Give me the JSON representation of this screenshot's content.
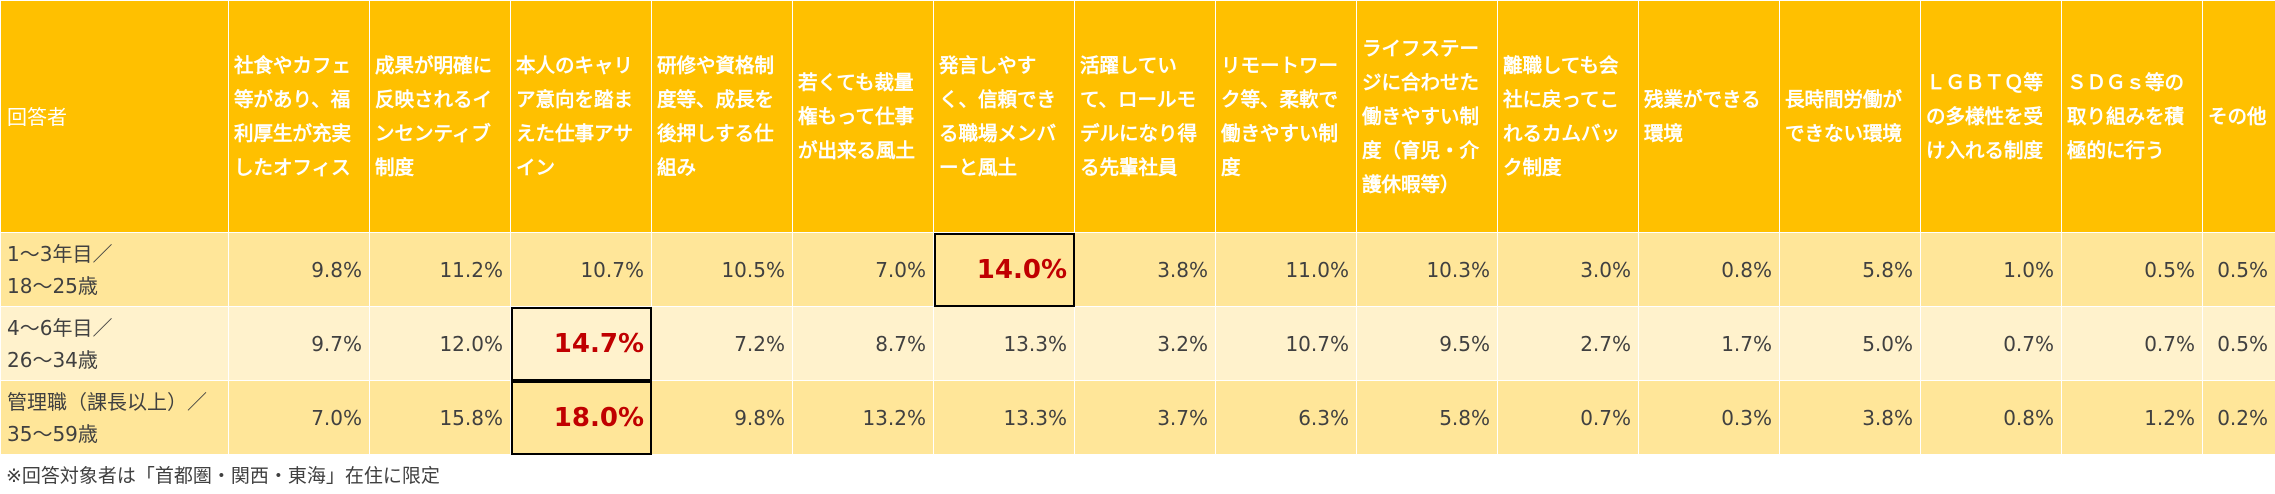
{
  "chart_data": {
    "type": "table",
    "row_header": "回答者",
    "columns": [
      "社食やカフェ等があり、福利厚生が充実したオフィス",
      "成果が明確に反映されるインセンティブ制度",
      "本人のキャリア意向を踏まえた仕事アサイン",
      "研修や資格制度等、成長を後押しする仕組み",
      "若くても裁量権もって仕事が出来る風土",
      "発言しやすく、信頼できる職場メンバーと風土",
      "活躍していて、ロールモデルになり得る先輩社員",
      "リモートワーク等、柔軟で働きやすい制度",
      "ライフステージに合わせた働きやすい制度（育児・介護休暇等）",
      "離職しても会社に戻ってこれるカムバック制度",
      "残業ができる環境",
      "長時間労働ができない環境",
      "ＬＧＢＴＱ等の多様性を受け入れる制度",
      "ＳＤＧｓ等の取り組みを積極的に行う",
      "その他"
    ],
    "rows": [
      {
        "label_line1": "1〜3年目／",
        "label_line2": "18〜25歳",
        "values": [
          9.8,
          11.2,
          10.7,
          10.5,
          7.0,
          14.0,
          3.8,
          11.0,
          10.3,
          3.0,
          0.8,
          5.8,
          1.0,
          0.5,
          0.5
        ],
        "display": [
          "9.8%",
          "11.2%",
          "10.7%",
          "10.5%",
          "7.0%",
          "14.0%",
          "3.8%",
          "11.0%",
          "10.3%",
          "3.0%",
          "0.8%",
          "5.8%",
          "1.0%",
          "0.5%",
          "0.5%"
        ],
        "highlight_index": 5
      },
      {
        "label_line1": "4〜6年目／",
        "label_line2": "26〜34歳",
        "values": [
          9.7,
          12.0,
          14.7,
          7.2,
          8.7,
          13.3,
          3.2,
          10.7,
          9.5,
          2.7,
          1.7,
          5.0,
          0.7,
          0.7,
          0.5
        ],
        "display": [
          "9.7%",
          "12.0%",
          "14.7%",
          "7.2%",
          "8.7%",
          "13.3%",
          "3.2%",
          "10.7%",
          "9.5%",
          "2.7%",
          "1.7%",
          "5.0%",
          "0.7%",
          "0.7%",
          "0.5%"
        ],
        "highlight_index": 2
      },
      {
        "label_line1": "管理職（課長以上）／",
        "label_line2": "35〜59歳",
        "values": [
          7.0,
          15.8,
          18.0,
          9.8,
          13.2,
          13.3,
          3.7,
          6.3,
          5.8,
          0.7,
          0.3,
          3.8,
          0.8,
          1.2,
          0.2
        ],
        "display": [
          "7.0%",
          "15.8%",
          "18.0%",
          "9.8%",
          "13.2%",
          "13.3%",
          "3.7%",
          "6.3%",
          "5.8%",
          "0.7%",
          "0.3%",
          "3.8%",
          "0.8%",
          "1.2%",
          "0.2%"
        ],
        "highlight_index": 2
      }
    ],
    "note": "※回答対象者は「首都圏・関西・東海」在住に限定",
    "colors": {
      "header": "#ffc000",
      "row_dark": "#ffe699",
      "row_light": "#fff2cc",
      "highlight_text": "#c00000"
    }
  }
}
